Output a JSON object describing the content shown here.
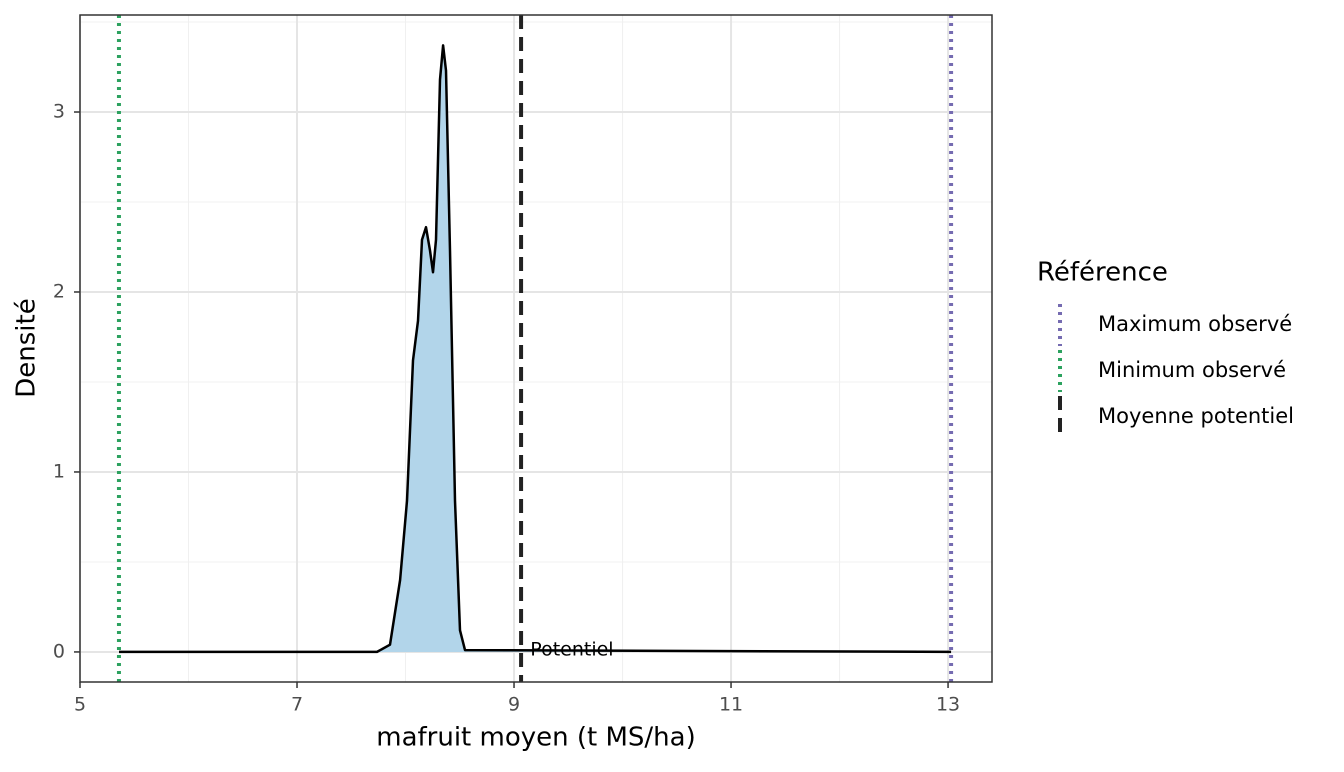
{
  "chart_data": {
    "type": "density",
    "x_label": "mafruit moyen (t MS/ha)",
    "y_label": "Densité",
    "x": [
      5.359,
      7.737,
      7.857,
      7.95,
      8.014,
      8.069,
      8.115,
      8.152,
      8.189,
      8.226,
      8.253,
      8.281,
      8.318,
      8.346,
      8.373,
      8.41,
      8.456,
      8.502,
      8.548,
      13.028
    ],
    "values": [
      0,
      0,
      0.04,
      0.4,
      0.84,
      1.62,
      1.84,
      2.29,
      2.36,
      2.23,
      2.11,
      2.29,
      3.18,
      3.37,
      3.23,
      2.23,
      0.84,
      0.12,
      0.01,
      0
    ],
    "color": "#000000",
    "fill": "#b2d5ea",
    "xlim": [
      5.0,
      13.405
    ],
    "ylim": [
      -0.167,
      3.539
    ],
    "xticks": [
      5,
      7,
      9,
      11,
      13
    ],
    "yticks": [
      0,
      1,
      2,
      3
    ],
    "xminorticks": [
      6,
      8,
      10,
      12
    ],
    "yminorticks": [
      0.5,
      1.5,
      2.5,
      3.5
    ],
    "grid": true,
    "legend_title": "Référence",
    "reference_lines": [
      {
        "name": "Maximum observé",
        "value": 13.028,
        "color": "#756bb1",
        "dash": "dotted"
      },
      {
        "name": "Minimum observé",
        "value": 5.359,
        "color": "#2ca25f",
        "dash": "dotted"
      },
      {
        "name": "Moyenne potentiel",
        "value": 9.065,
        "color": "#222222",
        "dash": "dashed"
      }
    ],
    "annotation": {
      "text": "Potentiel",
      "x": 9.15,
      "y": 0
    }
  }
}
